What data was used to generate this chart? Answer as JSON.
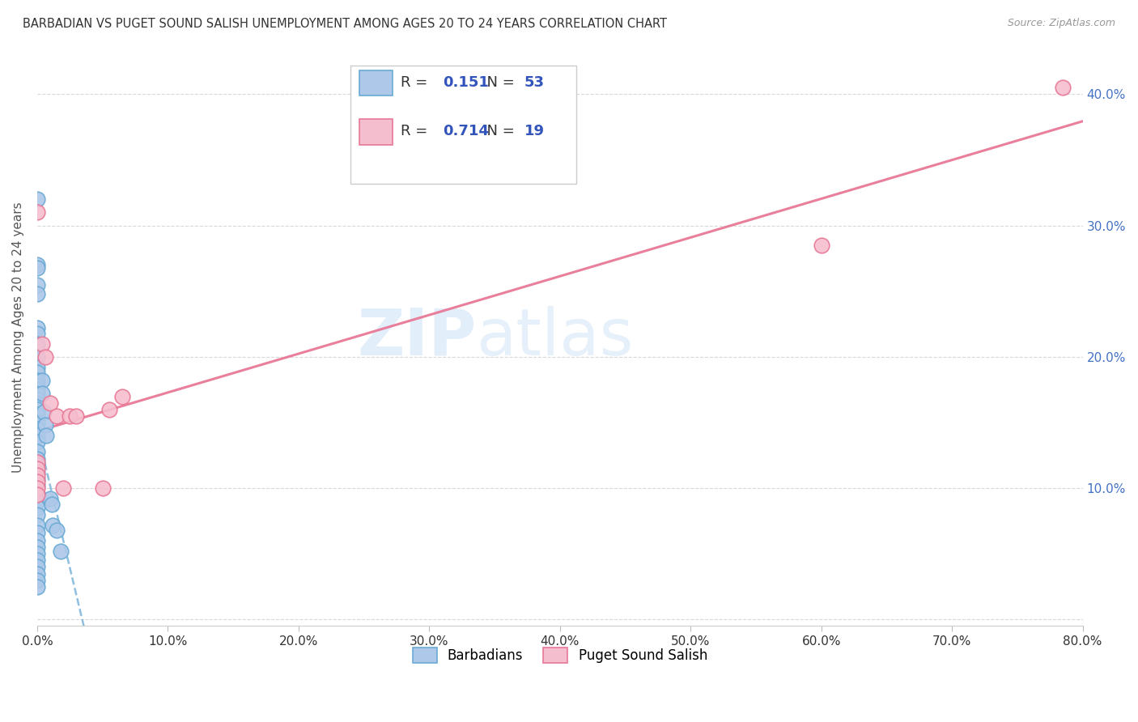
{
  "title": "BARBADIAN VS PUGET SOUND SALISH UNEMPLOYMENT AMONG AGES 20 TO 24 YEARS CORRELATION CHART",
  "source": "Source: ZipAtlas.com",
  "ylabel": "Unemployment Among Ages 20 to 24 years",
  "xlim": [
    0.0,
    0.8
  ],
  "ylim": [
    -0.005,
    0.435
  ],
  "xticks": [
    0.0,
    0.1,
    0.2,
    0.3,
    0.4,
    0.5,
    0.6,
    0.7,
    0.8
  ],
  "yticks": [
    0.0,
    0.1,
    0.2,
    0.3,
    0.4
  ],
  "ytick_labels_right": [
    "",
    "10.0%",
    "20.0%",
    "30.0%",
    "40.0%"
  ],
  "xtick_labels": [
    "0.0%",
    "10.0%",
    "20.0%",
    "30.0%",
    "40.0%",
    "50.0%",
    "60.0%",
    "70.0%",
    "80.0%"
  ],
  "barbadian_color": "#adc8e8",
  "barbadian_edge_color": "#6aaad4",
  "puget_color": "#f5bece",
  "puget_edge_color": "#e87896",
  "barbadian_R": 0.151,
  "barbadian_N": 53,
  "puget_R": 0.714,
  "puget_N": 19,
  "legend_label_1": "Barbadians",
  "legend_label_2": "Puget Sound Salish",
  "barbadian_x": [
    0.0,
    0.0,
    0.0,
    0.0,
    0.0,
    0.0,
    0.0,
    0.0,
    0.0,
    0.0,
    0.0,
    0.0,
    0.0,
    0.0,
    0.0,
    0.0,
    0.0,
    0.0,
    0.0,
    0.0,
    0.0,
    0.0,
    0.0,
    0.0,
    0.0,
    0.0,
    0.0,
    0.0,
    0.0,
    0.0,
    0.0,
    0.0,
    0.0,
    0.0,
    0.0,
    0.0,
    0.0,
    0.0,
    0.0,
    0.0,
    0.0,
    0.0,
    0.0,
    0.004,
    0.004,
    0.005,
    0.006,
    0.007,
    0.01,
    0.011,
    0.012,
    0.015,
    0.018
  ],
  "barbadian_y": [
    0.32,
    0.27,
    0.268,
    0.255,
    0.248,
    0.222,
    0.218,
    0.21,
    0.2,
    0.192,
    0.188,
    0.182,
    0.178,
    0.175,
    0.172,
    0.168,
    0.164,
    0.16,
    0.156,
    0.15,
    0.145,
    0.14,
    0.135,
    0.128,
    0.122,
    0.118,
    0.112,
    0.107,
    0.102,
    0.096,
    0.09,
    0.085,
    0.08,
    0.072,
    0.066,
    0.06,
    0.055,
    0.05,
    0.045,
    0.04,
    0.035,
    0.03,
    0.025,
    0.182,
    0.172,
    0.158,
    0.148,
    0.14,
    0.092,
    0.088,
    0.072,
    0.068,
    0.052
  ],
  "puget_x": [
    0.0,
    0.0,
    0.0,
    0.0,
    0.0,
    0.0,
    0.0,
    0.004,
    0.006,
    0.01,
    0.015,
    0.02,
    0.025,
    0.03,
    0.05,
    0.055,
    0.065,
    0.6,
    0.785
  ],
  "puget_y": [
    0.31,
    0.12,
    0.115,
    0.11,
    0.105,
    0.1,
    0.095,
    0.21,
    0.2,
    0.165,
    0.155,
    0.1,
    0.155,
    0.155,
    0.1,
    0.16,
    0.17,
    0.285,
    0.405
  ],
  "watermark_zip": "ZIP",
  "watermark_atlas": "atlas",
  "background_color": "#ffffff",
  "grid_color": "#d8d8d8",
  "tick_color": "#333333",
  "right_axis_color": "#4472c4",
  "legend_text_color": "#333333",
  "legend_value_color": "#3355bb"
}
